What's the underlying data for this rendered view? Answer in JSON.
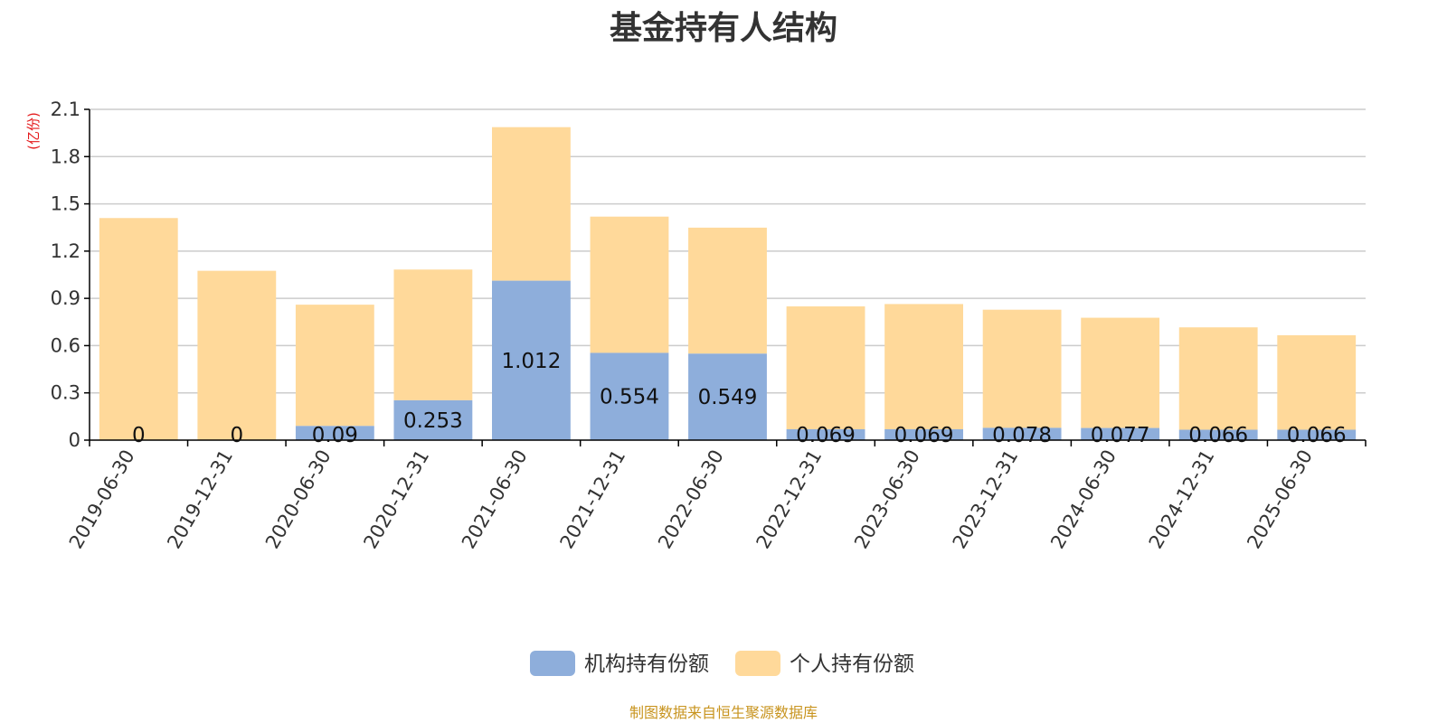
{
  "chart_data": {
    "type": "bar",
    "stacked": true,
    "title": "基金持有人结构",
    "ylabel": "(亿份)",
    "ylim": [
      0,
      2.1
    ],
    "yticks": [
      "0",
      "0.3",
      "0.6",
      "0.9",
      "1.2",
      "1.5",
      "1.8",
      "2.1"
    ],
    "grid": true,
    "legend_position": "bottom",
    "categories": [
      "2019-06-30",
      "2019-12-31",
      "2020-06-30",
      "2020-12-31",
      "2021-06-30",
      "2021-12-31",
      "2022-06-30",
      "2022-12-31",
      "2023-06-30",
      "2023-12-31",
      "2024-06-30",
      "2024-12-31",
      "2025-06-30"
    ],
    "series": [
      {
        "name": "机构持有份额",
        "color": "#8eaedb",
        "values": [
          0,
          0,
          0.09,
          0.253,
          1.012,
          0.554,
          0.549,
          0.069,
          0.069,
          0.078,
          0.077,
          0.066,
          0.066
        ],
        "labels": [
          "0",
          "0",
          "0.09",
          "0.253",
          "1.012",
          "0.554",
          "0.549",
          "0.069",
          "0.069",
          "0.078",
          "0.077",
          "0.066",
          "0.066"
        ]
      },
      {
        "name": "个人持有份额",
        "color": "#ffd99a",
        "values": [
          1.41,
          1.075,
          0.77,
          0.83,
          0.975,
          0.865,
          0.8,
          0.78,
          0.795,
          0.75,
          0.7,
          0.65,
          0.6
        ]
      }
    ]
  },
  "source_note": "制图数据来自恒生聚源数据库",
  "colors": {
    "title": "#333333",
    "ylabel": "#e41a1c",
    "source_note": "#c8941f",
    "grid": "#cccccc",
    "axis": "#000000"
  }
}
